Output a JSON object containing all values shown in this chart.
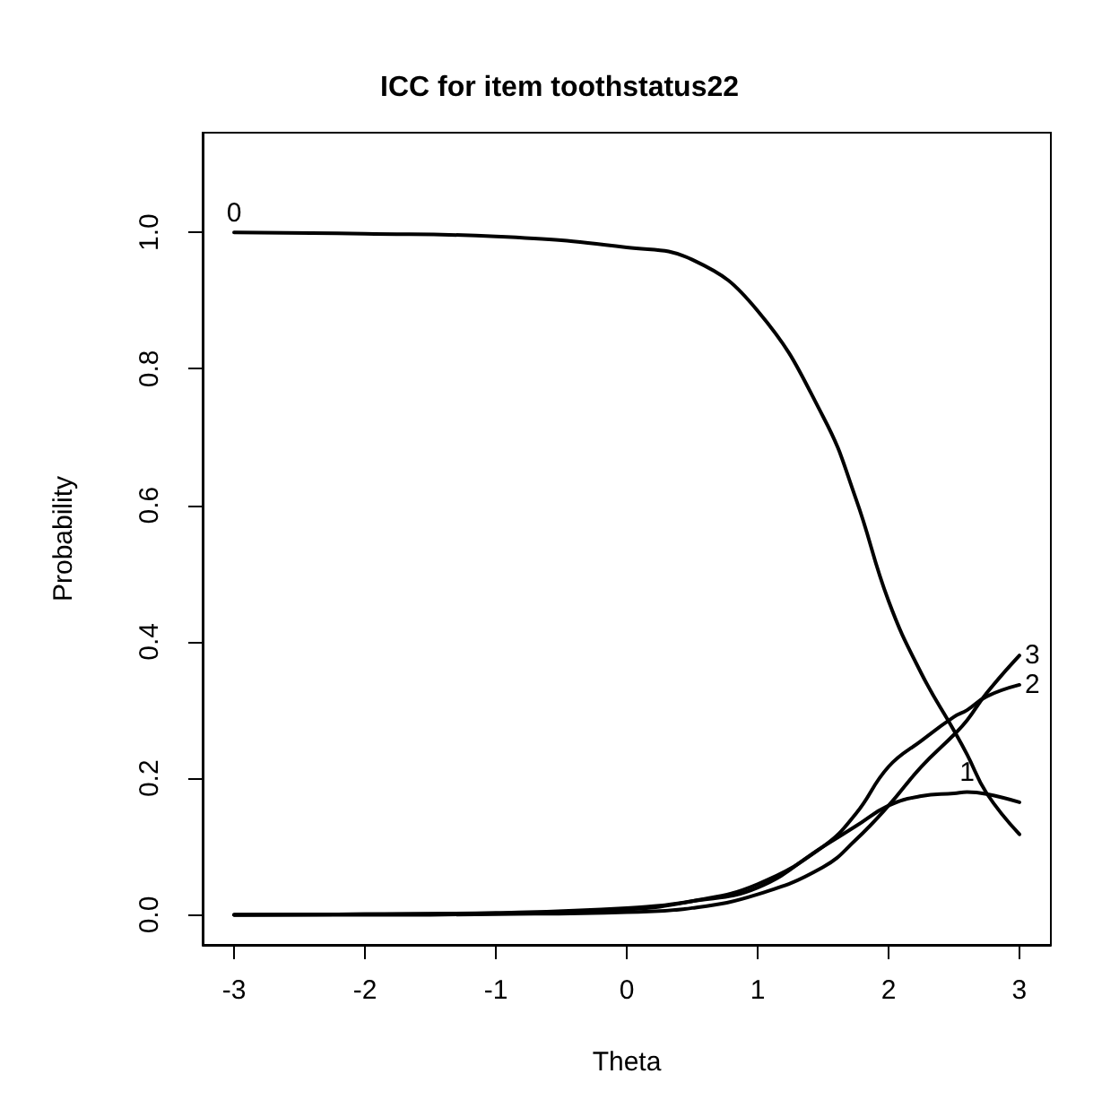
{
  "chart_data": {
    "type": "line",
    "title": "ICC for item toothstatus22",
    "xlabel": "Theta",
    "ylabel": "Probability",
    "x": [
      -3,
      -2,
      -1,
      0,
      0.5,
      1,
      1.5,
      1.75,
      2,
      2.25,
      2.5,
      2.6,
      2.75,
      3
    ],
    "series": [
      {
        "name": "0",
        "color": "#000000",
        "values": [
          1,
          0.998,
          0.994,
          0.978,
          0.96,
          0.885,
          0.73,
          0.61,
          0.46,
          0.354,
          0.27,
          0.235,
          0.178,
          0.118
        ]
      },
      {
        "name": "1",
        "color": "#000000",
        "values": [
          0,
          0.001,
          0.003,
          0.01,
          0.02,
          0.04,
          0.1,
          0.13,
          0.16,
          0.174,
          0.178,
          0.18,
          0.177,
          0.165
        ]
      },
      {
        "name": "2",
        "color": "#000000",
        "values": [
          0,
          0.001,
          0.002,
          0.008,
          0.02,
          0.045,
          0.1,
          0.148,
          0.217,
          0.255,
          0.29,
          0.3,
          0.32,
          0.337
        ]
      },
      {
        "name": "3",
        "color": "#000000",
        "values": [
          0,
          0,
          0.001,
          0.004,
          0.01,
          0.03,
          0.07,
          0.11,
          0.16,
          0.217,
          0.264,
          0.285,
          0.325,
          0.38
        ]
      }
    ],
    "xlim": [
      -3.24,
      3.24
    ],
    "xticks": [
      -3,
      -2,
      -1,
      0,
      1,
      2,
      3
    ],
    "ylim": [
      -0.044,
      1.146
    ],
    "yticks": [
      {
        "value": 0,
        "label": "0.0"
      },
      0.2,
      0.4,
      0.6,
      0.8,
      {
        "value": 1,
        "label": "1.0"
      }
    ],
    "grid": false,
    "legend": false,
    "marker": "none",
    "line_style": "solid"
  }
}
